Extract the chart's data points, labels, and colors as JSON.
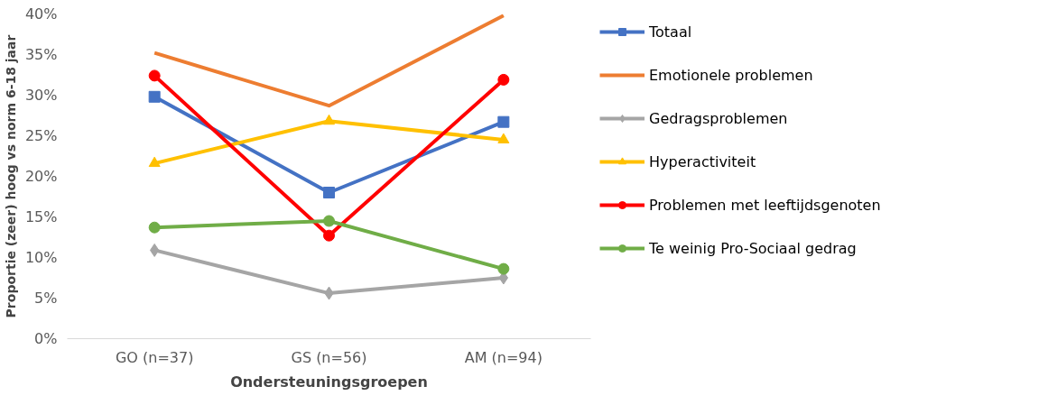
{
  "chart_data": {
    "type": "line",
    "xlabel": "Ondersteuningsgroepen",
    "ylabel": "Proportie (zeer) hoog vs norm 6-18 jaar",
    "categories": [
      "GO (n=37)",
      "GS (n=56)",
      "AM (n=94)"
    ],
    "ylim": [
      0,
      40
    ],
    "yticks": [
      {
        "value": 0,
        "label": "0%"
      },
      {
        "value": 5,
        "label": "5%"
      },
      {
        "value": 10,
        "label": "10%"
      },
      {
        "value": 15,
        "label": "15%"
      },
      {
        "value": 20,
        "label": "20%"
      },
      {
        "value": 25,
        "label": "25%"
      },
      {
        "value": 30,
        "label": "30%"
      },
      {
        "value": 35,
        "label": "35%"
      },
      {
        "value": 40,
        "label": "40%"
      }
    ],
    "grid": false,
    "legend": "right",
    "series": [
      {
        "name": "Totaal",
        "color": "#4472c4",
        "marker": "square",
        "values": [
          29.8,
          18.0,
          26.7
        ]
      },
      {
        "name": "Emotionele problemen",
        "color": "#ed7d31",
        "marker": "none",
        "values": [
          35.2,
          28.7,
          39.8
        ]
      },
      {
        "name": "Gedragsproblemen",
        "color": "#a5a5a5",
        "marker": "diamond",
        "values": [
          10.9,
          5.6,
          7.5
        ]
      },
      {
        "name": "Hyperactiviteit",
        "color": "#ffc000",
        "marker": "triangle",
        "values": [
          21.6,
          26.8,
          24.5
        ]
      },
      {
        "name": "Problemen met leeftijdsgenoten",
        "color": "#ff0000",
        "marker": "circle",
        "values": [
          32.4,
          12.7,
          31.9
        ]
      },
      {
        "name": "Te weinig Pro-Sociaal gedrag",
        "color": "#70ad47",
        "marker": "circle",
        "values": [
          13.7,
          14.5,
          8.6
        ]
      }
    ]
  }
}
